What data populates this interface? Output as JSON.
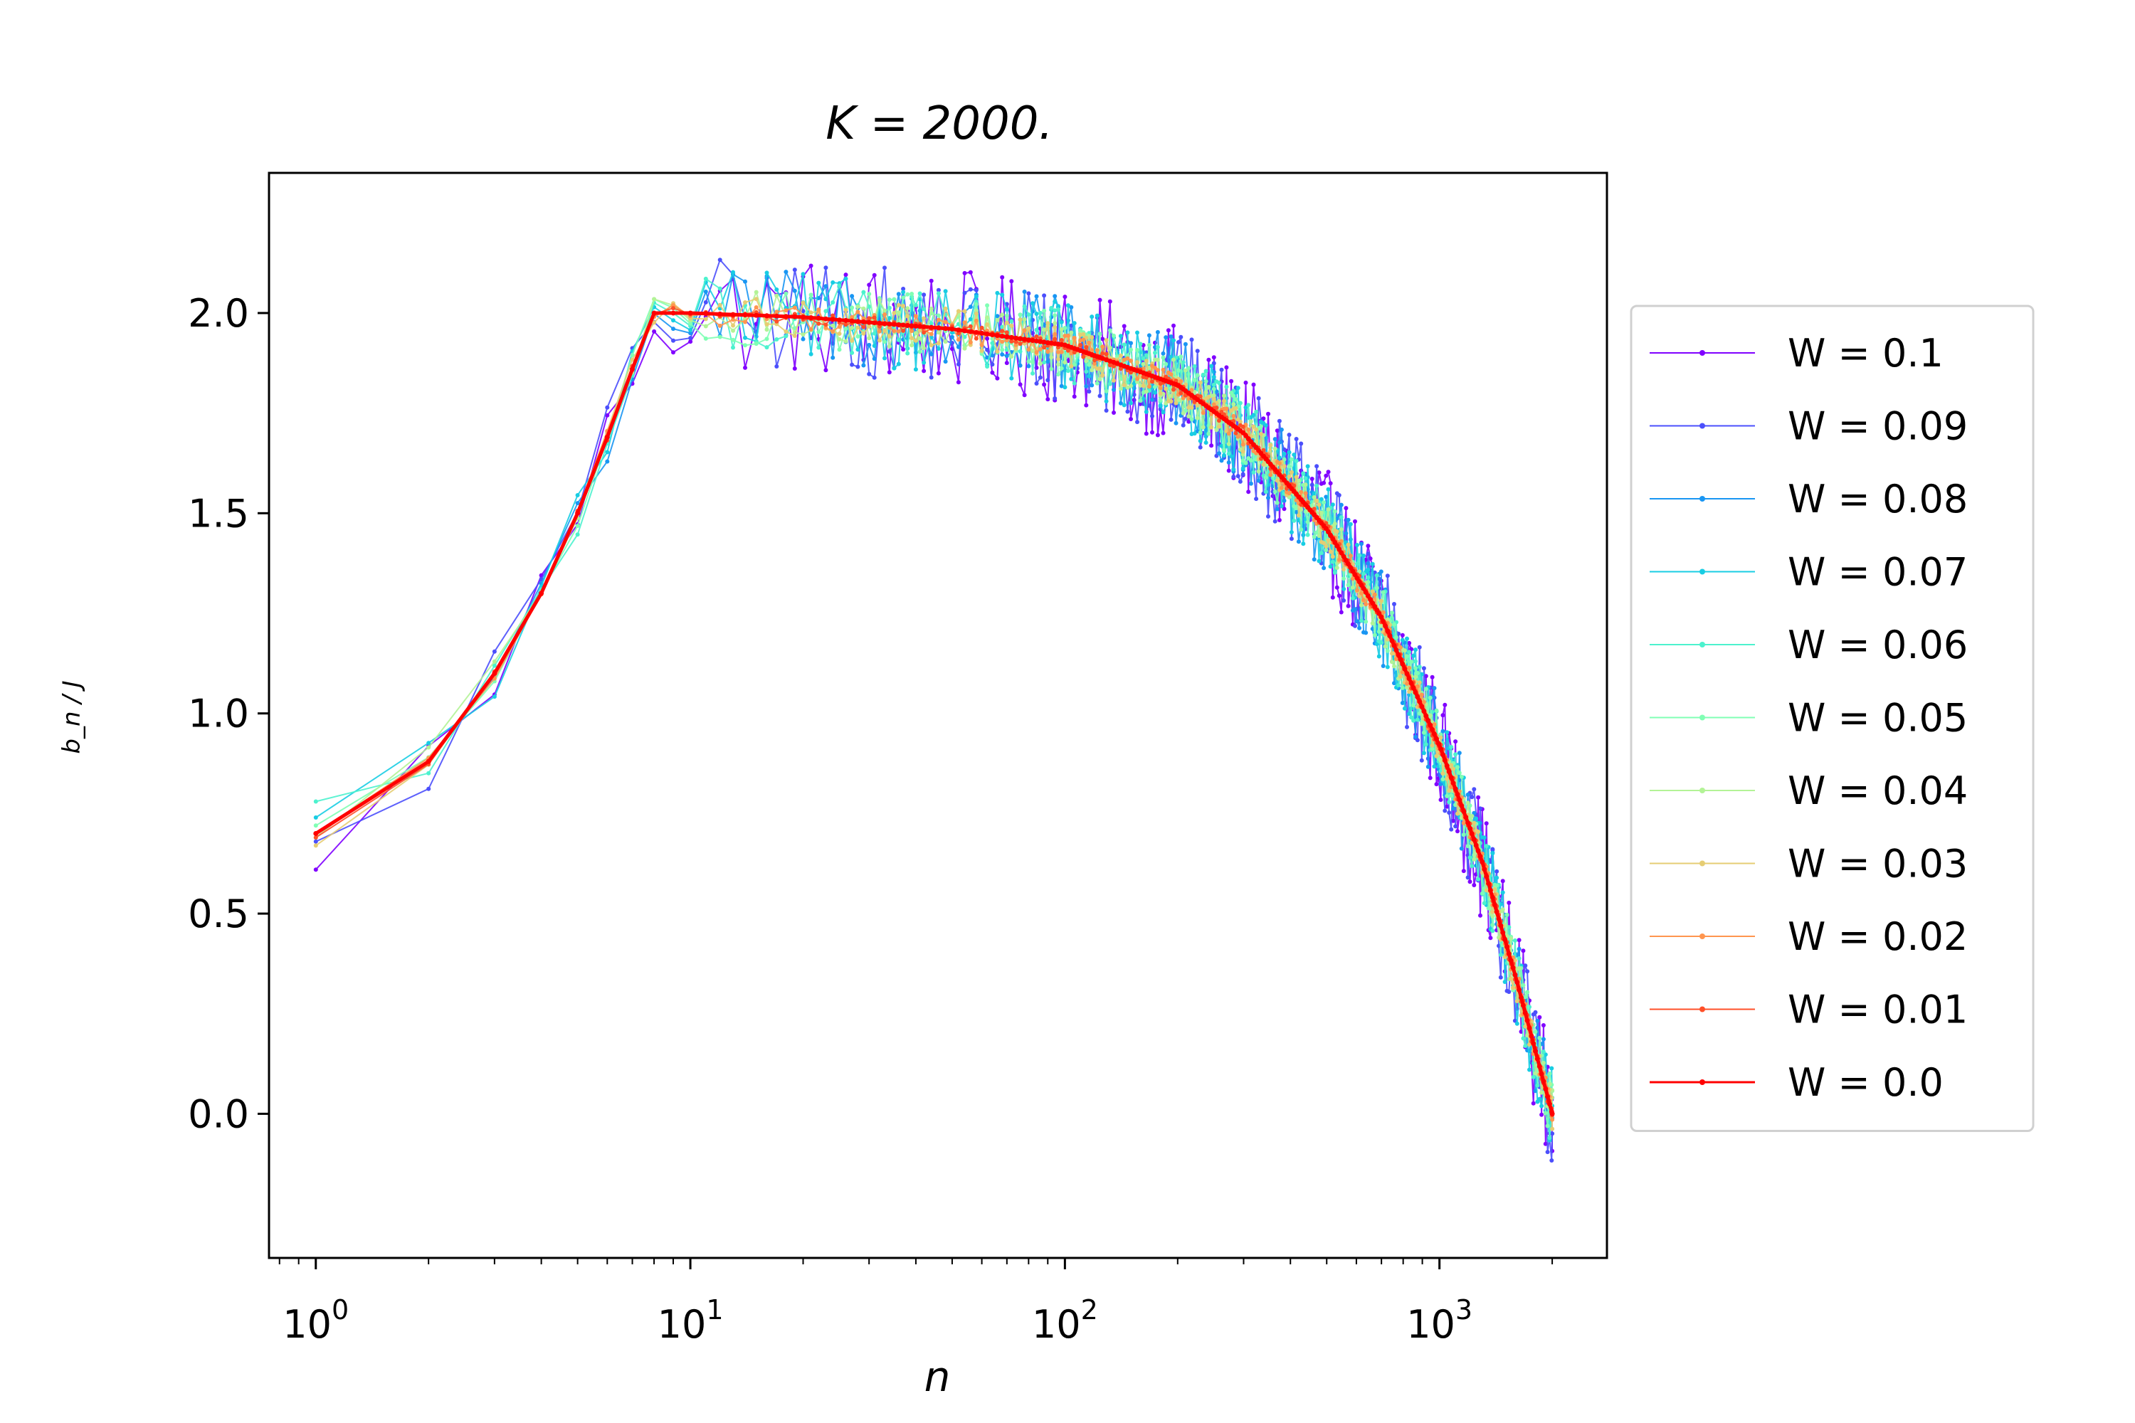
{
  "chart_data": {
    "type": "line",
    "title": "K = 2000.",
    "xlabel": "n",
    "ylabel": "b_n / J",
    "xscale": "log",
    "xlim": [
      0.75,
      2800
    ],
    "ylim": [
      -0.36,
      2.35
    ],
    "x_ticks": [
      {
        "base": "10",
        "exp": "0",
        "value": 1
      },
      {
        "base": "10",
        "exp": "1",
        "value": 10
      },
      {
        "base": "10",
        "exp": "2",
        "value": 100
      },
      {
        "base": "10",
        "exp": "3",
        "value": 1000
      }
    ],
    "y_ticks": [
      "0.0",
      "0.5",
      "1.0",
      "1.5",
      "2.0"
    ],
    "y_tick_values": [
      0.0,
      0.5,
      1.0,
      1.5,
      2.0
    ],
    "grid": false,
    "legend_position": "outside-right",
    "n_max": 2000,
    "series": [
      {
        "name": "W = 0.1",
        "W": 0.1,
        "color": "#8000ff",
        "start_value": 0.61,
        "noise_amplitude": 0.15
      },
      {
        "name": "W = 0.09",
        "W": 0.09,
        "color": "#4b4ffc",
        "start_value": 0.68,
        "noise_amplitude": 0.14
      },
      {
        "name": "W = 0.08",
        "W": 0.08,
        "color": "#1996f3",
        "start_value": 0.7,
        "noise_amplitude": 0.12
      },
      {
        "name": "W = 0.07",
        "W": 0.07,
        "color": "#18cde3",
        "start_value": 0.74,
        "noise_amplitude": 0.11
      },
      {
        "name": "W = 0.06",
        "W": 0.06,
        "color": "#4cf2ce",
        "start_value": 0.78,
        "noise_amplitude": 0.09
      },
      {
        "name": "W = 0.05",
        "W": 0.05,
        "color": "#80ffb4",
        "start_value": 0.72,
        "noise_amplitude": 0.08
      },
      {
        "name": "W = 0.04",
        "W": 0.04,
        "color": "#b3f396",
        "start_value": 0.69,
        "noise_amplitude": 0.06
      },
      {
        "name": "W = 0.03",
        "W": 0.03,
        "color": "#e6cd73",
        "start_value": 0.67,
        "noise_amplitude": 0.05
      },
      {
        "name": "W = 0.02",
        "W": 0.02,
        "color": "#ff964f",
        "start_value": 0.7,
        "noise_amplitude": 0.03
      },
      {
        "name": "W = 0.01",
        "W": 0.01,
        "color": "#ff4f28",
        "start_value": 0.69,
        "noise_amplitude": 0.015
      },
      {
        "name": "W = 0.0",
        "W": 0.0,
        "color": "#ff0000",
        "start_value": 0.7,
        "noise_amplitude": 0.0
      }
    ],
    "clean_curve_W0": {
      "n": [
        1,
        2,
        3,
        4,
        5,
        6,
        7,
        8,
        10,
        20,
        50,
        100,
        200,
        300,
        500,
        700,
        1000,
        1300,
        1600,
        1800,
        2000
      ],
      "b_over_J": [
        0.7,
        0.88,
        1.1,
        1.3,
        1.5,
        1.69,
        1.86,
        2.0,
        2.0,
        1.99,
        1.96,
        1.92,
        1.82,
        1.7,
        1.46,
        1.24,
        0.92,
        0.63,
        0.34,
        0.16,
        0.0
      ]
    }
  }
}
